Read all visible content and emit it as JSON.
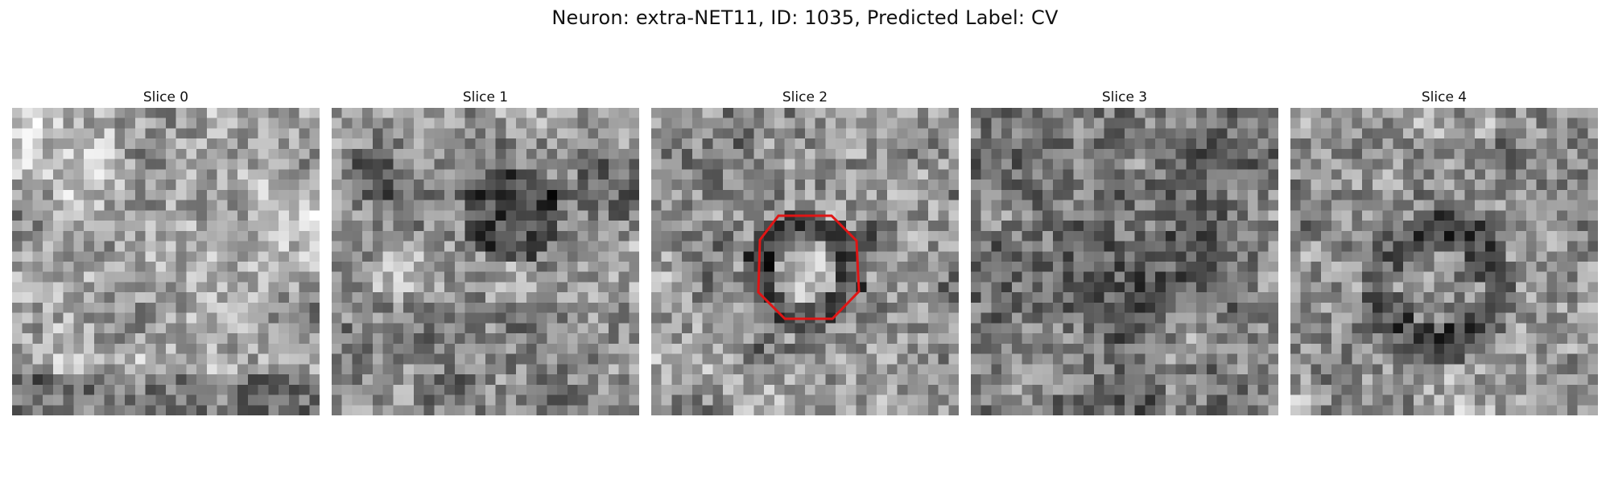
{
  "figure": {
    "title": "Neuron: extra-NET11, ID: 1035, Predicted Label: CV"
  },
  "panels": [
    {
      "title": "Slice 0",
      "mean_intensity": 0.64,
      "style": "bright-blotchy",
      "outlined": false
    },
    {
      "title": "Slice 1",
      "mean_intensity": 0.55,
      "style": "dark-patch-upper-center",
      "outlined": false
    },
    {
      "title": "Slice 2",
      "mean_intensity": 0.58,
      "style": "ring-center",
      "outlined": true
    },
    {
      "title": "Slice 3",
      "mean_intensity": 0.47,
      "style": "noisy-dark",
      "outlined": false
    },
    {
      "title": "Slice 4",
      "mean_intensity": 0.56,
      "style": "dark-ring-faint",
      "outlined": false
    }
  ],
  "image": {
    "grid_size": 30,
    "colormap": "grayscale"
  },
  "annotation": {
    "shape": "octagon",
    "color": "#e01515",
    "panel": "Slice 2"
  }
}
